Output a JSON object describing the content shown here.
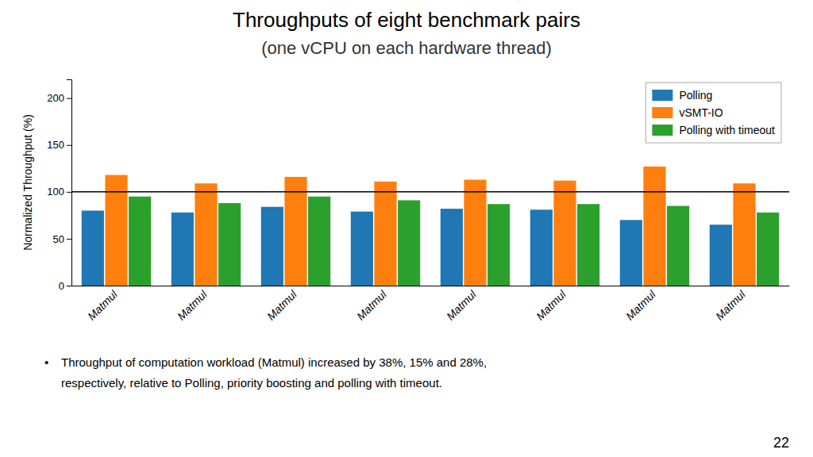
{
  "chart_data": {
    "type": "bar",
    "title": "Throughputs of eight benchmark pairs",
    "subtitle": "(one vCPU on each hardware thread)",
    "y_label": "Normalized Throughput (%)",
    "categories": [
      "Matmul",
      "Matmul",
      "Matmul",
      "Matmul",
      "Matmul",
      "Matmul",
      "Matmul",
      "Matmul"
    ],
    "series": [
      {
        "name": "Polling",
        "values": [
          80,
          78,
          84,
          79,
          82,
          81,
          70,
          65
        ]
      },
      {
        "name": "vSMT-IO",
        "values": [
          118,
          109,
          116,
          111,
          113,
          112,
          127,
          109
        ]
      },
      {
        "name": "Polling with timeout",
        "values": [
          95,
          88,
          95,
          91,
          87,
          87,
          85,
          78
        ]
      }
    ],
    "hline": 100,
    "ylim": [
      0,
      220
    ],
    "yticks": [
      0,
      50,
      100,
      150,
      200
    ],
    "grid": false,
    "legend": "upper right",
    "annotations": [
      "•",
      "Throughput of computation workload (Matmul) increased by 38%, 15% and 28%,",
      "respectively, relative to Polling, priority boosting and polling with timeout.",
      "22"
    ]
  }
}
